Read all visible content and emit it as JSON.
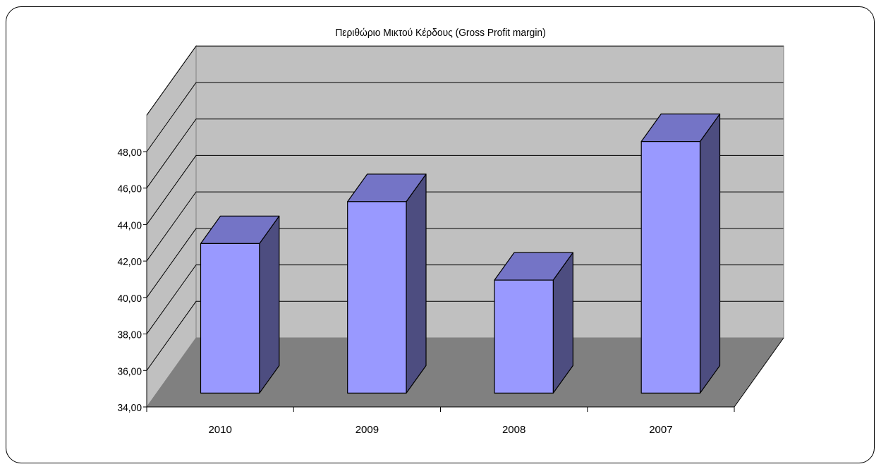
{
  "chart_data": {
    "type": "bar",
    "title": "Περιθώριο Μικτού Κέρδους (Gross Profit margin)",
    "categories": [
      "2010",
      "2009",
      "2008",
      "2007"
    ],
    "values": [
      42.2,
      44.5,
      40.2,
      47.8
    ],
    "ylim": [
      34,
      48
    ],
    "yticks": [
      "34,00",
      "36,00",
      "38,00",
      "40,00",
      "42,00",
      "44,00",
      "46,00",
      "48,00"
    ],
    "ytick_values": [
      34,
      36,
      38,
      40,
      42,
      44,
      46,
      48
    ],
    "y_axis_top": 50,
    "grid": true,
    "style": "3d-column",
    "legend": "none"
  },
  "colors": {
    "bar_front": "#9999ff",
    "bar_top": "#7474c6",
    "bar_side": "#4d4d80",
    "back_wall": "#c0c0c0",
    "floor": "#808080",
    "side_wall": "#c0c0c0"
  }
}
